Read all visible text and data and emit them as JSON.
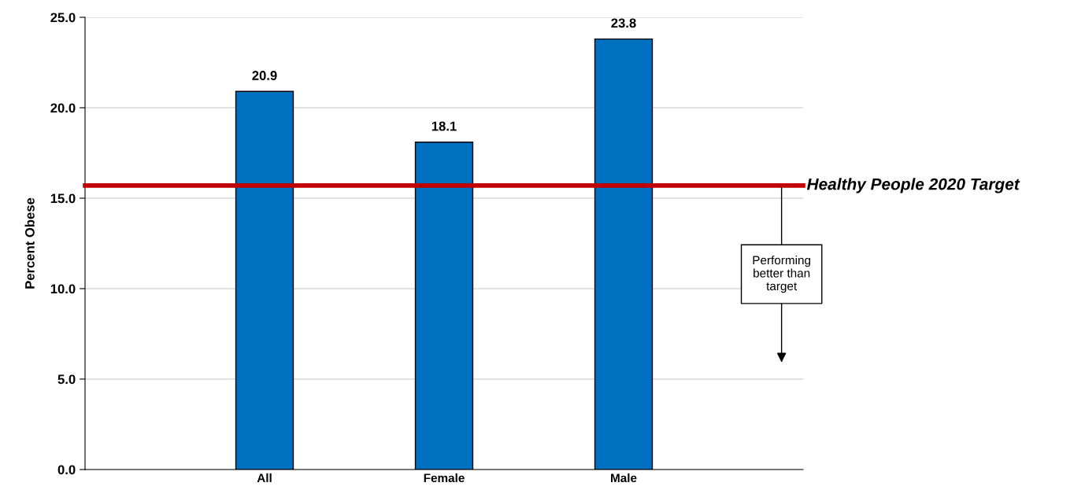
{
  "chart_data": {
    "type": "bar",
    "ylabel": "Percent Obese",
    "categories": [
      "All",
      "Female",
      "Male"
    ],
    "values": [
      20.9,
      18.1,
      23.8
    ],
    "color": "#0070c0",
    "ylim": [
      0,
      25
    ],
    "yticks": [
      {
        "value": 0,
        "label": "0.0"
      },
      {
        "value": 5,
        "label": "5.0"
      },
      {
        "value": 10,
        "label": "10.0"
      },
      {
        "value": 15,
        "label": "15.0"
      },
      {
        "value": 20,
        "label": "20.0"
      },
      {
        "value": 25,
        "label": "25.0"
      }
    ],
    "grid": "y",
    "data_labels": true,
    "ref_lines": [
      {
        "axis": "y",
        "value": 15.7,
        "label": "Healthy People 2020 Target",
        "color": "#c00000"
      }
    ],
    "annotations": [
      "Performing\nbetter than\ntarget"
    ]
  }
}
